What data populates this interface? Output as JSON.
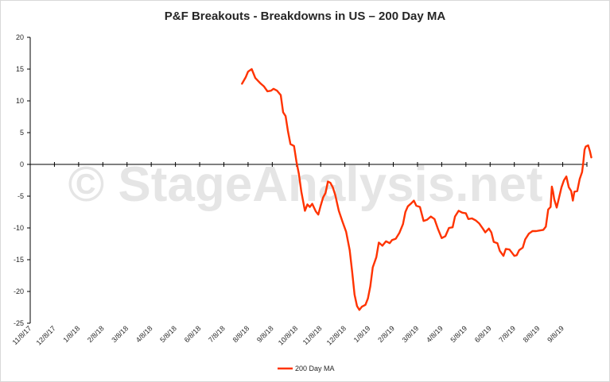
{
  "watermark": "© StageAnalysis.net",
  "chart_data": {
    "type": "line",
    "title": "P&F Breakouts - Breakdowns in US – 200 Day MA",
    "xlabel": "",
    "ylabel": "",
    "ylim": [
      -25,
      20
    ],
    "y_ticks": [
      "-25",
      "-20",
      "-15",
      "-10",
      "-5",
      "0",
      "5",
      "10",
      "15",
      "20"
    ],
    "x_ticks": [
      "11/8/17",
      "12/8/17",
      "1/8/18",
      "2/8/18",
      "3/8/18",
      "4/8/18",
      "5/8/18",
      "6/8/18",
      "7/8/18",
      "8/8/18",
      "9/8/18",
      "10/8/18",
      "11/8/18",
      "12/8/18",
      "1/8/19",
      "2/8/19",
      "3/8/19",
      "4/8/19",
      "5/8/19",
      "6/8/19",
      "7/8/19",
      "8/8/19",
      "9/8/19"
    ],
    "grid": false,
    "legend": "bottom",
    "series": [
      {
        "name": "200 Day MA",
        "color": "#ff3300",
        "points": [
          [
            8.75,
            12.7
          ],
          [
            8.9,
            13.7
          ],
          [
            9.0,
            14.6
          ],
          [
            9.15,
            15.0
          ],
          [
            9.3,
            13.6
          ],
          [
            9.5,
            12.8
          ],
          [
            9.65,
            12.3
          ],
          [
            9.8,
            11.5
          ],
          [
            9.95,
            11.6
          ],
          [
            10.05,
            11.9
          ],
          [
            10.2,
            11.6
          ],
          [
            10.35,
            10.9
          ],
          [
            10.45,
            8.2
          ],
          [
            10.55,
            7.6
          ],
          [
            10.65,
            5.2
          ],
          [
            10.75,
            3.2
          ],
          [
            10.9,
            2.9
          ],
          [
            11.0,
            0.4
          ],
          [
            11.1,
            -1.5
          ],
          [
            11.2,
            -4.3
          ],
          [
            11.35,
            -7.3
          ],
          [
            11.45,
            -6.3
          ],
          [
            11.55,
            -6.7
          ],
          [
            11.65,
            -6.2
          ],
          [
            11.8,
            -7.4
          ],
          [
            11.9,
            -7.9
          ],
          [
            12.0,
            -6.5
          ],
          [
            12.1,
            -5.2
          ],
          [
            12.2,
            -4.5
          ],
          [
            12.3,
            -2.7
          ],
          [
            12.4,
            -2.9
          ],
          [
            12.5,
            -3.6
          ],
          [
            12.6,
            -4.8
          ],
          [
            12.75,
            -7.3
          ],
          [
            12.9,
            -9.0
          ],
          [
            13.05,
            -10.6
          ],
          [
            13.2,
            -13.5
          ],
          [
            13.3,
            -16.9
          ],
          [
            13.4,
            -20.5
          ],
          [
            13.5,
            -22.3
          ],
          [
            13.6,
            -22.9
          ],
          [
            13.7,
            -22.4
          ],
          [
            13.85,
            -22.1
          ],
          [
            13.95,
            -21.1
          ],
          [
            14.05,
            -19.2
          ],
          [
            14.15,
            -16.2
          ],
          [
            14.3,
            -14.6
          ],
          [
            14.4,
            -12.3
          ],
          [
            14.55,
            -12.8
          ],
          [
            14.7,
            -12.1
          ],
          [
            14.85,
            -12.4
          ],
          [
            14.95,
            -11.9
          ],
          [
            15.1,
            -11.7
          ],
          [
            15.25,
            -10.8
          ],
          [
            15.4,
            -9.4
          ],
          [
            15.5,
            -7.5
          ],
          [
            15.6,
            -6.6
          ],
          [
            15.75,
            -6.1
          ],
          [
            15.85,
            -5.7
          ],
          [
            15.95,
            -6.5
          ],
          [
            16.1,
            -6.7
          ],
          [
            16.25,
            -8.9
          ],
          [
            16.4,
            -8.7
          ],
          [
            16.55,
            -8.2
          ],
          [
            16.7,
            -8.6
          ],
          [
            16.85,
            -10.2
          ],
          [
            17.0,
            -11.6
          ],
          [
            17.15,
            -11.3
          ],
          [
            17.3,
            -10.0
          ],
          [
            17.45,
            -9.9
          ],
          [
            17.55,
            -8.2
          ],
          [
            17.7,
            -7.3
          ],
          [
            17.85,
            -7.6
          ],
          [
            18.0,
            -7.7
          ],
          [
            18.1,
            -8.6
          ],
          [
            18.25,
            -8.5
          ],
          [
            18.4,
            -8.8
          ],
          [
            18.55,
            -9.3
          ],
          [
            18.7,
            -10.1
          ],
          [
            18.8,
            -10.7
          ],
          [
            18.95,
            -10.1
          ],
          [
            19.05,
            -10.7
          ],
          [
            19.15,
            -12.2
          ],
          [
            19.3,
            -12.4
          ],
          [
            19.4,
            -13.6
          ],
          [
            19.55,
            -14.4
          ],
          [
            19.65,
            -13.3
          ],
          [
            19.8,
            -13.4
          ],
          [
            19.9,
            -13.9
          ],
          [
            20.0,
            -14.4
          ],
          [
            20.1,
            -14.3
          ],
          [
            20.2,
            -13.5
          ],
          [
            20.35,
            -13.1
          ],
          [
            20.45,
            -11.8
          ],
          [
            20.6,
            -10.9
          ],
          [
            20.75,
            -10.5
          ],
          [
            20.9,
            -10.5
          ],
          [
            21.05,
            -10.4
          ],
          [
            21.2,
            -10.3
          ],
          [
            21.3,
            -9.8
          ],
          [
            21.4,
            -7.1
          ],
          [
            21.5,
            -6.7
          ],
          [
            21.55,
            -3.5
          ],
          [
            21.6,
            -4.3
          ],
          [
            21.65,
            -5.5
          ],
          [
            21.75,
            -6.8
          ],
          [
            21.85,
            -5.2
          ],
          [
            21.95,
            -3.6
          ],
          [
            22.05,
            -2.5
          ],
          [
            22.15,
            -1.9
          ],
          [
            22.25,
            -3.6
          ],
          [
            22.35,
            -4.2
          ],
          [
            22.42,
            -5.7
          ],
          [
            22.48,
            -4.3
          ],
          [
            22.6,
            -4.2
          ],
          [
            22.7,
            -2.3
          ],
          [
            22.8,
            -1.2
          ],
          [
            22.85,
            0.3
          ],
          [
            22.9,
            2.3
          ],
          [
            22.95,
            2.8
          ],
          [
            23.05,
            3.0
          ],
          [
            23.12,
            2.1
          ],
          [
            23.18,
            1.1
          ]
        ]
      }
    ]
  }
}
